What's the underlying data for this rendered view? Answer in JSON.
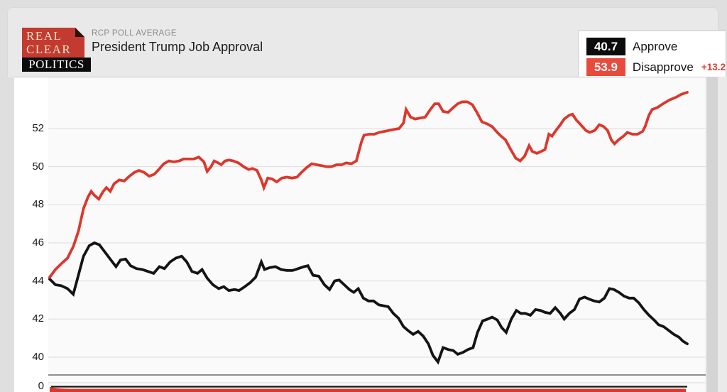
{
  "header": {
    "kicker": "RCP POLL AVERAGE",
    "title": "President Trump Job Approval"
  },
  "logo": {
    "line1": "REAL",
    "line2": "CLEAR",
    "line3": "POLITICS"
  },
  "legend": {
    "approve": {
      "value": "40.7",
      "label": "Approve"
    },
    "disapprove": {
      "value": "53.9",
      "label": "Disapprove",
      "spread": "+13.2"
    }
  },
  "colors": {
    "approve_line": "#141414",
    "disapprove_line": "#dc372c",
    "approve_badge_bg": "#0c0c0c",
    "disapprove_badge_bg": "#e84a3c",
    "spread_text": "#e0392d",
    "gridline": "#dcdcdc",
    "axis_break_line": "#8f8f8f",
    "plot_bg": "#fafafa"
  },
  "chart_data": {
    "type": "line",
    "title": "President Trump Job Approval",
    "subtitle": "RCP POLL AVERAGE",
    "xlabel": "",
    "ylabel": "",
    "x_axis_labels_visible": false,
    "grid": true,
    "legend_position": "top-right",
    "y_axis": {
      "main_ticks": [
        52,
        50,
        48,
        46,
        44,
        42,
        40
      ],
      "break_to_zero": true,
      "zero_tick": "0"
    },
    "ylim_main": [
      39.5,
      54.3
    ],
    "x_unit": "percent of visible time window (no date labels shown)",
    "series": [
      {
        "name": "Approve",
        "current": 40.7,
        "color": "#141414",
        "points": [
          [
            0,
            44.1
          ],
          [
            0.9,
            43.8
          ],
          [
            1.8,
            43.75
          ],
          [
            2.8,
            43.6
          ],
          [
            3.7,
            43.3
          ],
          [
            4.5,
            44.3
          ],
          [
            5.3,
            45.3
          ],
          [
            6.2,
            45.85
          ],
          [
            7,
            46
          ],
          [
            7.8,
            45.9
          ],
          [
            8.7,
            45.5
          ],
          [
            9.6,
            45.1
          ],
          [
            10.4,
            44.75
          ],
          [
            11.1,
            45.1
          ],
          [
            11.9,
            45.15
          ],
          [
            12.7,
            44.8
          ],
          [
            13.6,
            44.65
          ],
          [
            14.5,
            44.6
          ],
          [
            15.4,
            44.5
          ],
          [
            16.3,
            44.4
          ],
          [
            17.2,
            44.75
          ],
          [
            18,
            44.65
          ],
          [
            18.9,
            45
          ],
          [
            19.8,
            45.2
          ],
          [
            20.7,
            45.3
          ],
          [
            21.5,
            45
          ],
          [
            22.3,
            44.5
          ],
          [
            23.2,
            44.4
          ],
          [
            23.9,
            44.6
          ],
          [
            24.7,
            44.15
          ],
          [
            25.6,
            43.8
          ],
          [
            26.5,
            43.6
          ],
          [
            27.3,
            43.7
          ],
          [
            28.1,
            43.5
          ],
          [
            29,
            43.55
          ],
          [
            29.7,
            43.5
          ],
          [
            30.6,
            43.7
          ],
          [
            31.4,
            43.9
          ],
          [
            32.3,
            44.2
          ],
          [
            33.2,
            45
          ],
          [
            33.7,
            44.6
          ],
          [
            34.5,
            44.7
          ],
          [
            35.4,
            44.75
          ],
          [
            36.3,
            44.6
          ],
          [
            37.2,
            44.55
          ],
          [
            38.1,
            44.55
          ],
          [
            39,
            44.65
          ],
          [
            39.9,
            44.75
          ],
          [
            40.5,
            44.8
          ],
          [
            41.3,
            44.3
          ],
          [
            42.2,
            44.25
          ],
          [
            43.1,
            43.8
          ],
          [
            43.9,
            43.55
          ],
          [
            44.7,
            44
          ],
          [
            45.4,
            44.05
          ],
          [
            46.2,
            43.8
          ],
          [
            47,
            43.55
          ],
          [
            47.7,
            43.4
          ],
          [
            48.4,
            43.6
          ],
          [
            49.2,
            43.1
          ],
          [
            50,
            42.95
          ],
          [
            50.8,
            42.95
          ],
          [
            51.6,
            42.75
          ],
          [
            52.3,
            42.7
          ],
          [
            53.1,
            42.65
          ],
          [
            53.9,
            42.3
          ],
          [
            54.7,
            42.05
          ],
          [
            55.5,
            41.6
          ],
          [
            56.2,
            41.4
          ],
          [
            57,
            41.2
          ],
          [
            57.8,
            41.35
          ],
          [
            58.6,
            41.1
          ],
          [
            59.4,
            40.7
          ],
          [
            60.1,
            40.1
          ],
          [
            60.9,
            39.75
          ],
          [
            61.7,
            40.5
          ],
          [
            62.5,
            40.4
          ],
          [
            63.3,
            40.35
          ],
          [
            64,
            40.15
          ],
          [
            64.8,
            40.25
          ],
          [
            65.6,
            40.4
          ],
          [
            66.4,
            40.5
          ],
          [
            67.1,
            41.3
          ],
          [
            67.9,
            41.9
          ],
          [
            68.7,
            42
          ],
          [
            69.4,
            42.1
          ],
          [
            70.2,
            41.95
          ],
          [
            70.9,
            41.55
          ],
          [
            71.6,
            41.3
          ],
          [
            72.4,
            42
          ],
          [
            73.2,
            42.45
          ],
          [
            73.9,
            42.3
          ],
          [
            74.6,
            42.3
          ],
          [
            75.4,
            42.2
          ],
          [
            76.2,
            42.5
          ],
          [
            77,
            42.45
          ],
          [
            77.7,
            42.35
          ],
          [
            78.5,
            42.3
          ],
          [
            79.3,
            42.6
          ],
          [
            80.1,
            42.3
          ],
          [
            80.7,
            42
          ],
          [
            81.5,
            42.3
          ],
          [
            82.3,
            42.5
          ],
          [
            83.1,
            43.05
          ],
          [
            83.9,
            43.15
          ],
          [
            84.6,
            43.05
          ],
          [
            85.4,
            42.95
          ],
          [
            86.2,
            42.9
          ],
          [
            87,
            43.1
          ],
          [
            87.8,
            43.6
          ],
          [
            88.5,
            43.55
          ],
          [
            89.3,
            43.4
          ],
          [
            90.1,
            43.2
          ],
          [
            90.9,
            43.1
          ],
          [
            91.6,
            43.1
          ],
          [
            92.4,
            42.85
          ],
          [
            93.2,
            42.5
          ],
          [
            94,
            42.2
          ],
          [
            94.8,
            41.95
          ],
          [
            95.5,
            41.7
          ],
          [
            96.3,
            41.6
          ],
          [
            97.1,
            41.4
          ],
          [
            97.9,
            41.2
          ],
          [
            98.7,
            41.05
          ],
          [
            99.3,
            40.85
          ],
          [
            100,
            40.7
          ]
        ]
      },
      {
        "name": "Disapprove",
        "current": 53.9,
        "color": "#dc372c",
        "points": [
          [
            0,
            44.2
          ],
          [
            0.9,
            44.6
          ],
          [
            1.8,
            44.9
          ],
          [
            2.8,
            45.2
          ],
          [
            3.7,
            45.8
          ],
          [
            4.5,
            46.6
          ],
          [
            5.3,
            47.8
          ],
          [
            6,
            48.4
          ],
          [
            6.5,
            48.7
          ],
          [
            7,
            48.5
          ],
          [
            7.7,
            48.3
          ],
          [
            8.4,
            48.7
          ],
          [
            8.9,
            48.9
          ],
          [
            9.5,
            48.7
          ],
          [
            10.1,
            49.1
          ],
          [
            10.9,
            49.3
          ],
          [
            11.7,
            49.25
          ],
          [
            12.5,
            49.5
          ],
          [
            13.3,
            49.7
          ],
          [
            14,
            49.8
          ],
          [
            14.8,
            49.7
          ],
          [
            15.6,
            49.5
          ],
          [
            16.4,
            49.6
          ],
          [
            17.1,
            49.85
          ],
          [
            17.9,
            50.15
          ],
          [
            18.7,
            50.3
          ],
          [
            19.5,
            50.25
          ],
          [
            20.3,
            50.3
          ],
          [
            21,
            50.4
          ],
          [
            21.8,
            50.4
          ],
          [
            22.6,
            50.4
          ],
          [
            23.4,
            50.5
          ],
          [
            24.2,
            50.25
          ],
          [
            24.7,
            49.75
          ],
          [
            25.3,
            50
          ],
          [
            25.8,
            50.3
          ],
          [
            26.4,
            50.2
          ],
          [
            26.9,
            50.1
          ],
          [
            27.5,
            50.3
          ],
          [
            28.1,
            50.35
          ],
          [
            28.8,
            50.3
          ],
          [
            29.6,
            50.2
          ],
          [
            30.4,
            50
          ],
          [
            31.2,
            49.85
          ],
          [
            31.8,
            49.9
          ],
          [
            32.5,
            49.8
          ],
          [
            33.2,
            49.3
          ],
          [
            33.6,
            48.9
          ],
          [
            34.2,
            49.4
          ],
          [
            34.9,
            49.35
          ],
          [
            35.6,
            49.2
          ],
          [
            36.4,
            49.4
          ],
          [
            37.2,
            49.45
          ],
          [
            38,
            49.4
          ],
          [
            38.8,
            49.45
          ],
          [
            39.5,
            49.7
          ],
          [
            40.3,
            49.95
          ],
          [
            41.1,
            50.15
          ],
          [
            41.9,
            50.1
          ],
          [
            42.7,
            50.05
          ],
          [
            43.4,
            50
          ],
          [
            44.2,
            50
          ],
          [
            45,
            50.1
          ],
          [
            45.8,
            50.1
          ],
          [
            46.5,
            50.2
          ],
          [
            47.3,
            50.15
          ],
          [
            48.1,
            50.3
          ],
          [
            48.9,
            51.3
          ],
          [
            49.3,
            51.65
          ],
          [
            50.1,
            51.7
          ],
          [
            50.9,
            51.7
          ],
          [
            51.7,
            51.8
          ],
          [
            52.5,
            51.85
          ],
          [
            53.2,
            51.9
          ],
          [
            54,
            51.95
          ],
          [
            54.8,
            52
          ],
          [
            55.5,
            52.3
          ],
          [
            55.9,
            53
          ],
          [
            56.6,
            52.6
          ],
          [
            57.3,
            52.5
          ],
          [
            58.1,
            52.55
          ],
          [
            58.9,
            52.6
          ],
          [
            59.7,
            53
          ],
          [
            60.4,
            53.3
          ],
          [
            61,
            53.3
          ],
          [
            61.7,
            52.9
          ],
          [
            62.5,
            52.85
          ],
          [
            63.3,
            53.1
          ],
          [
            64,
            53.3
          ],
          [
            64.7,
            53.4
          ],
          [
            65.5,
            53.4
          ],
          [
            66.3,
            53.25
          ],
          [
            67,
            52.85
          ],
          [
            67.8,
            52.35
          ],
          [
            68.6,
            52.25
          ],
          [
            69.4,
            52.1
          ],
          [
            70.2,
            51.8
          ],
          [
            70.8,
            51.6
          ],
          [
            71.5,
            51.4
          ],
          [
            72.3,
            50.9
          ],
          [
            73.1,
            50.45
          ],
          [
            73.8,
            50.3
          ],
          [
            74.5,
            50.55
          ],
          [
            75.2,
            51.1
          ],
          [
            75.7,
            50.8
          ],
          [
            76.4,
            50.7
          ],
          [
            77.1,
            50.8
          ],
          [
            77.7,
            50.9
          ],
          [
            78.3,
            51.7
          ],
          [
            78.8,
            51.6
          ],
          [
            79.4,
            51.9
          ],
          [
            80.1,
            52.2
          ],
          [
            80.7,
            52.5
          ],
          [
            81.5,
            52.7
          ],
          [
            82,
            52.75
          ],
          [
            82.6,
            52.45
          ],
          [
            83.3,
            52.2
          ],
          [
            84.1,
            51.9
          ],
          [
            84.7,
            51.8
          ],
          [
            85.5,
            51.9
          ],
          [
            86.2,
            52.2
          ],
          [
            86.9,
            52.1
          ],
          [
            87.5,
            51.9
          ],
          [
            88.1,
            51.4
          ],
          [
            88.6,
            51.2
          ],
          [
            89.2,
            51.4
          ],
          [
            90,
            51.6
          ],
          [
            90.6,
            51.8
          ],
          [
            91.4,
            51.7
          ],
          [
            92.2,
            51.7
          ],
          [
            93,
            51.85
          ],
          [
            93.4,
            52.1
          ],
          [
            94,
            52.7
          ],
          [
            94.5,
            53
          ],
          [
            95.3,
            53.1
          ],
          [
            96.2,
            53.3
          ],
          [
            97.2,
            53.5
          ],
          [
            98.3,
            53.65
          ],
          [
            99.1,
            53.8
          ],
          [
            100,
            53.9
          ]
        ]
      }
    ]
  }
}
